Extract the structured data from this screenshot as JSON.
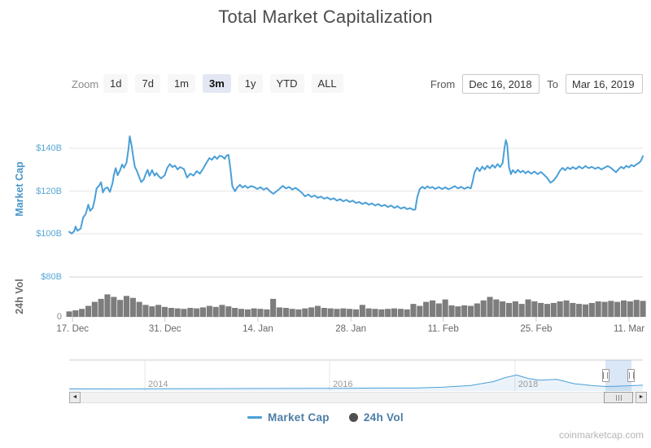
{
  "title": "Total Market Capitalization",
  "watermark": "coinmarketcap.com",
  "toolbar": {
    "zoom_label": "Zoom",
    "buttons": [
      {
        "label": "1d",
        "active": false
      },
      {
        "label": "7d",
        "active": false
      },
      {
        "label": "1m",
        "active": false
      },
      {
        "label": "3m",
        "active": true
      },
      {
        "label": "1y",
        "active": false
      },
      {
        "label": "YTD",
        "active": false
      },
      {
        "label": "ALL",
        "active": false
      }
    ],
    "from_label": "From",
    "from_value": "Dec 16, 2018",
    "to_label": "To",
    "to_value": "Mar 16, 2019"
  },
  "legend": {
    "market_cap": "Market Cap",
    "vol": "24h Vol"
  },
  "icons": {
    "scroll_left": "◄",
    "scroll_right": "►"
  },
  "colors": {
    "line_blue": "#4a9fd8",
    "axis_blue": "#57a7d5",
    "axis_title_blue": "#4a96c8",
    "volume_gray": "#7d7d7d",
    "text_gray": "#666666",
    "active_button_bg": "#e2e7f3",
    "navigator_selection": "rgba(119,170,221,0.28)"
  },
  "chart_data": [
    {
      "type": "line",
      "name": "Market Cap",
      "color": "#4a9fd8",
      "ylabel": "Market Cap",
      "ylabel_color": "#4a96c8",
      "ylim": [
        91,
        152
      ],
      "ytick_color": "#57a7d5",
      "yticks": [
        {
          "value": 140,
          "label": "$140B"
        },
        {
          "value": 120,
          "label": "$120B"
        },
        {
          "value": 100,
          "label": "$100B"
        }
      ],
      "x_unit": "days since Dec 16, 2018",
      "xlim_days": [
        0,
        90
      ],
      "xticks": [
        {
          "pos": 0.006,
          "label": "17. Dec"
        },
        {
          "pos": 0.167,
          "label": "31. Dec"
        },
        {
          "pos": 0.329,
          "label": "14. Jan"
        },
        {
          "pos": 0.491,
          "label": "28. Jan"
        },
        {
          "pos": 0.652,
          "label": "11. Feb"
        },
        {
          "pos": 0.814,
          "label": "25. Feb"
        },
        {
          "pos": 0.976,
          "label": "11. Mar"
        }
      ],
      "points": [
        [
          0,
          100.9
        ],
        [
          0.4,
          100.1
        ],
        [
          0.8,
          101.2
        ],
        [
          1,
          103.4
        ],
        [
          1.3,
          101.4
        ],
        [
          1.8,
          102.4
        ],
        [
          2.2,
          107.6
        ],
        [
          2.6,
          109.3
        ],
        [
          3,
          113.6
        ],
        [
          3.3,
          110.7
        ],
        [
          3.7,
          112.1
        ],
        [
          4,
          115.9
        ],
        [
          4.3,
          121.2
        ],
        [
          4.7,
          122.5
        ],
        [
          5,
          124.1
        ],
        [
          5.3,
          119.3
        ],
        [
          5.6,
          121.1
        ],
        [
          6,
          121.7
        ],
        [
          6.4,
          119.6
        ],
        [
          6.8,
          123.7
        ],
        [
          7,
          127.3
        ],
        [
          7.3,
          130.7
        ],
        [
          7.6,
          127.4
        ],
        [
          8,
          129.8
        ],
        [
          8.3,
          132.4
        ],
        [
          8.6,
          130.9
        ],
        [
          9,
          133.3
        ],
        [
          9.3,
          139.7
        ],
        [
          9.5,
          145.6
        ],
        [
          9.8,
          141.2
        ],
        [
          10,
          137
        ],
        [
          10.3,
          131.3
        ],
        [
          10.6,
          129.6
        ],
        [
          11,
          126.4
        ],
        [
          11.3,
          124.2
        ],
        [
          11.7,
          125.4
        ],
        [
          12,
          127.9
        ],
        [
          12.3,
          129.9
        ],
        [
          12.6,
          127.1
        ],
        [
          13,
          129.8
        ],
        [
          13.4,
          127.2
        ],
        [
          13.7,
          128.4
        ],
        [
          14,
          127.1
        ],
        [
          14.4,
          125.9
        ],
        [
          15,
          127.4
        ],
        [
          15.4,
          130.9
        ],
        [
          15.8,
          132.6
        ],
        [
          16.2,
          131.2
        ],
        [
          16.6,
          131.9
        ],
        [
          17,
          130.1
        ],
        [
          17.4,
          131.2
        ],
        [
          18,
          130.3
        ],
        [
          18.5,
          126.3
        ],
        [
          19,
          128.1
        ],
        [
          19.5,
          127.2
        ],
        [
          20,
          129.3
        ],
        [
          20.5,
          128.1
        ],
        [
          21,
          130.4
        ],
        [
          21.5,
          133
        ],
        [
          22,
          135.4
        ],
        [
          22.4,
          134.6
        ],
        [
          22.8,
          136.2
        ],
        [
          23.2,
          135
        ],
        [
          23.6,
          136.5
        ],
        [
          24,
          136.2
        ],
        [
          24.4,
          135.1
        ],
        [
          24.7,
          136.6
        ],
        [
          25,
          136.9
        ],
        [
          25.3,
          130.2
        ],
        [
          25.6,
          122.3
        ],
        [
          26,
          119.9
        ],
        [
          26.4,
          121.8
        ],
        [
          26.8,
          122.9
        ],
        [
          27.2,
          121.6
        ],
        [
          27.6,
          122.5
        ],
        [
          28,
          121.4
        ],
        [
          28.5,
          122.3
        ],
        [
          29,
          121.9
        ],
        [
          29.5,
          120.9
        ],
        [
          30,
          121.8
        ],
        [
          30.5,
          120.6
        ],
        [
          31,
          121.4
        ],
        [
          31.5,
          119.9
        ],
        [
          32,
          118.7
        ],
        [
          32.5,
          119.8
        ],
        [
          33,
          121
        ],
        [
          33.5,
          122.4
        ],
        [
          34,
          121.2
        ],
        [
          34.5,
          121.9
        ],
        [
          35,
          120.7
        ],
        [
          35.5,
          121.5
        ],
        [
          36,
          120.4
        ],
        [
          36.5,
          119.2
        ],
        [
          37,
          117.5
        ],
        [
          37.5,
          118.4
        ],
        [
          38,
          117.2
        ],
        [
          38.5,
          117.9
        ],
        [
          39,
          116.8
        ],
        [
          39.5,
          117.4
        ],
        [
          40,
          116.4
        ],
        [
          40.5,
          117
        ],
        [
          41,
          116
        ],
        [
          41.5,
          116.6
        ],
        [
          42,
          115.5
        ],
        [
          42.5,
          116.2
        ],
        [
          43,
          115.2
        ],
        [
          43.5,
          115.9
        ],
        [
          44,
          114.9
        ],
        [
          44.5,
          115.5
        ],
        [
          45,
          114.4
        ],
        [
          45.5,
          114.9
        ],
        [
          46,
          113.9
        ],
        [
          46.5,
          114.6
        ],
        [
          47,
          113.6
        ],
        [
          47.5,
          114.2
        ],
        [
          48,
          113.2
        ],
        [
          48.5,
          113.9
        ],
        [
          49,
          112.9
        ],
        [
          49.5,
          113.5
        ],
        [
          50,
          112.5
        ],
        [
          50.5,
          113.2
        ],
        [
          51,
          112.1
        ],
        [
          51.5,
          112.9
        ],
        [
          52,
          111.8
        ],
        [
          52.6,
          112.4
        ],
        [
          53,
          111.5
        ],
        [
          53.5,
          112
        ],
        [
          54,
          111.2
        ],
        [
          54.3,
          111.3
        ],
        [
          54.6,
          117
        ],
        [
          55,
          120.9
        ],
        [
          55.4,
          122
        ],
        [
          55.8,
          121.1
        ],
        [
          56.2,
          122.2
        ],
        [
          56.6,
          121.4
        ],
        [
          57,
          121.9
        ],
        [
          57.4,
          121
        ],
        [
          58,
          121.8
        ],
        [
          58.5,
          120.9
        ],
        [
          59,
          121.7
        ],
        [
          59.5,
          120.8
        ],
        [
          60,
          121.5
        ],
        [
          60.5,
          122.3
        ],
        [
          61,
          121.2
        ],
        [
          61.5,
          122
        ],
        [
          62,
          121
        ],
        [
          62.5,
          121.8
        ],
        [
          63,
          121.2
        ],
        [
          63.3,
          124.5
        ],
        [
          63.6,
          128.8
        ],
        [
          64,
          130.9
        ],
        [
          64.4,
          129.3
        ],
        [
          64.8,
          131.4
        ],
        [
          65.2,
          130.1
        ],
        [
          65.6,
          131.8
        ],
        [
          66,
          130.6
        ],
        [
          66.4,
          132.2
        ],
        [
          66.8,
          130.9
        ],
        [
          67.2,
          132.6
        ],
        [
          67.6,
          131.2
        ],
        [
          68,
          133.1
        ],
        [
          68.3,
          140.2
        ],
        [
          68.5,
          143.8
        ],
        [
          68.7,
          141.9
        ],
        [
          69,
          131.2
        ],
        [
          69.3,
          127.9
        ],
        [
          69.6,
          129.8
        ],
        [
          70,
          128.5
        ],
        [
          70.4,
          129.9
        ],
        [
          70.8,
          128.7
        ],
        [
          71.2,
          129.5
        ],
        [
          71.6,
          128.3
        ],
        [
          72,
          129.3
        ],
        [
          72.5,
          128.1
        ],
        [
          73,
          129.1
        ],
        [
          73.5,
          127.9
        ],
        [
          74,
          128.9
        ],
        [
          74.5,
          127.6
        ],
        [
          75,
          126.1
        ],
        [
          75.5,
          123.9
        ],
        [
          76,
          124.9
        ],
        [
          76.5,
          126.9
        ],
        [
          77,
          129.6
        ],
        [
          77.4,
          130.8
        ],
        [
          77.8,
          129.7
        ],
        [
          78.2,
          131
        ],
        [
          78.6,
          130.2
        ],
        [
          79,
          131.2
        ],
        [
          79.5,
          130.3
        ],
        [
          80,
          131.5
        ],
        [
          80.5,
          130.5
        ],
        [
          81,
          131.7
        ],
        [
          81.5,
          130.7
        ],
        [
          82,
          131.3
        ],
        [
          82.5,
          130.4
        ],
        [
          83,
          131.1
        ],
        [
          83.5,
          130.1
        ],
        [
          84,
          130.9
        ],
        [
          84.5,
          131.7
        ],
        [
          85,
          130.8
        ],
        [
          85.4,
          129.7
        ],
        [
          85.8,
          128.8
        ],
        [
          86.2,
          130.2
        ],
        [
          86.6,
          131.3
        ],
        [
          87,
          130.5
        ],
        [
          87.4,
          131.8
        ],
        [
          87.8,
          131
        ],
        [
          88.2,
          132.2
        ],
        [
          88.6,
          131.5
        ],
        [
          89,
          132.5
        ],
        [
          89.4,
          133.2
        ],
        [
          89.7,
          134.1
        ],
        [
          90,
          136.3
        ]
      ]
    },
    {
      "type": "bar",
      "name": "24h Vol",
      "color": "#7d7d7d",
      "ylabel": "24h Vol",
      "ylabel_color": "#6e6e6e",
      "ylim": [
        0,
        80
      ],
      "yticks": [
        {
          "value": 80,
          "label": "$80B",
          "color": "#57a7d5"
        },
        {
          "value": 0,
          "label": "0",
          "color": "#8a8a8a"
        }
      ],
      "points": [
        [
          0,
          11
        ],
        [
          1,
          13
        ],
        [
          2,
          16
        ],
        [
          3,
          22
        ],
        [
          4,
          30
        ],
        [
          5,
          36
        ],
        [
          6,
          45
        ],
        [
          7,
          40
        ],
        [
          8,
          34
        ],
        [
          9,
          42
        ],
        [
          10,
          38
        ],
        [
          11,
          30
        ],
        [
          12,
          24
        ],
        [
          13,
          21
        ],
        [
          14,
          24
        ],
        [
          15,
          20
        ],
        [
          16,
          18
        ],
        [
          17,
          17
        ],
        [
          18,
          16
        ],
        [
          19,
          18
        ],
        [
          20,
          17
        ],
        [
          21,
          19
        ],
        [
          22,
          22
        ],
        [
          23,
          20
        ],
        [
          24,
          24
        ],
        [
          25,
          21
        ],
        [
          26,
          18
        ],
        [
          27,
          16
        ],
        [
          28,
          15
        ],
        [
          29,
          17
        ],
        [
          30,
          16
        ],
        [
          31,
          15
        ],
        [
          32,
          36
        ],
        [
          33,
          19
        ],
        [
          34,
          18
        ],
        [
          35,
          16
        ],
        [
          36,
          15
        ],
        [
          37,
          17
        ],
        [
          38,
          19
        ],
        [
          39,
          22
        ],
        [
          40,
          18
        ],
        [
          41,
          17
        ],
        [
          42,
          16
        ],
        [
          43,
          17
        ],
        [
          44,
          16
        ],
        [
          45,
          15
        ],
        [
          46,
          24
        ],
        [
          47,
          17
        ],
        [
          48,
          16
        ],
        [
          49,
          15
        ],
        [
          50,
          16
        ],
        [
          51,
          17
        ],
        [
          52,
          16
        ],
        [
          53,
          15
        ],
        [
          54,
          26
        ],
        [
          55,
          22
        ],
        [
          56,
          30
        ],
        [
          57,
          33
        ],
        [
          58,
          27
        ],
        [
          59,
          35
        ],
        [
          60,
          23
        ],
        [
          61,
          21
        ],
        [
          62,
          23
        ],
        [
          63,
          22
        ],
        [
          64,
          27
        ],
        [
          65,
          33
        ],
        [
          66,
          40
        ],
        [
          67,
          35
        ],
        [
          68,
          31
        ],
        [
          69,
          28
        ],
        [
          70,
          31
        ],
        [
          71,
          26
        ],
        [
          72,
          35
        ],
        [
          73,
          31
        ],
        [
          74,
          28
        ],
        [
          75,
          26
        ],
        [
          76,
          28
        ],
        [
          77,
          31
        ],
        [
          78,
          33
        ],
        [
          79,
          28
        ],
        [
          80,
          26
        ],
        [
          81,
          25
        ],
        [
          82,
          28
        ],
        [
          83,
          31
        ],
        [
          84,
          30
        ],
        [
          85,
          32
        ],
        [
          86,
          30
        ],
        [
          87,
          33
        ],
        [
          88,
          31
        ],
        [
          89,
          34
        ],
        [
          90,
          32
        ]
      ]
    },
    {
      "type": "navigator",
      "name": "Full history navigator",
      "color": "#4a9fd8",
      "year_ticks": [
        {
          "pos": 0.132,
          "label": "2014"
        },
        {
          "pos": 0.454,
          "label": "2016"
        },
        {
          "pos": 0.777,
          "label": "2018"
        }
      ],
      "selection": [
        0.935,
        0.98
      ],
      "points": [
        [
          0,
          0.02
        ],
        [
          0.15,
          0.025
        ],
        [
          0.3,
          0.03
        ],
        [
          0.45,
          0.04
        ],
        [
          0.55,
          0.05
        ],
        [
          0.6,
          0.05
        ],
        [
          0.65,
          0.08
        ],
        [
          0.7,
          0.15
        ],
        [
          0.74,
          0.3
        ],
        [
          0.76,
          0.45
        ],
        [
          0.78,
          0.55
        ],
        [
          0.8,
          0.42
        ],
        [
          0.82,
          0.35
        ],
        [
          0.85,
          0.38
        ],
        [
          0.88,
          0.22
        ],
        [
          0.91,
          0.15
        ],
        [
          0.935,
          0.11
        ],
        [
          0.95,
          0.12
        ],
        [
          0.97,
          0.13
        ],
        [
          1,
          0.16
        ]
      ]
    }
  ]
}
